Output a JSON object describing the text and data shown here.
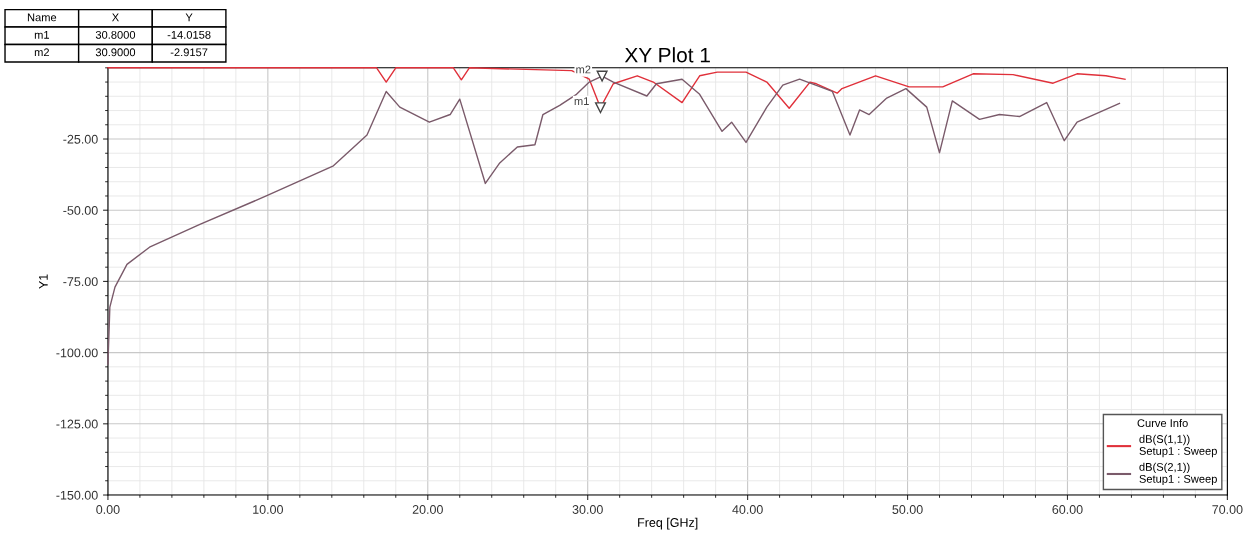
{
  "chart_data": {
    "type": "line",
    "title": "XY Plot 1",
    "xlabel": "Freq [GHz]",
    "ylabel": "Y1",
    "legend_title": "Curve Info",
    "xlim": [
      0,
      70
    ],
    "ylim": [
      -150,
      0
    ],
    "xticks": [
      {
        "value": 0,
        "label": "0.00"
      },
      {
        "value": 10,
        "label": "10.00"
      },
      {
        "value": 20,
        "label": "20.00"
      },
      {
        "value": 30,
        "label": "30.00"
      },
      {
        "value": 40,
        "label": "40.00"
      },
      {
        "value": 50,
        "label": "50.00"
      },
      {
        "value": 60,
        "label": "60.00"
      },
      {
        "value": 70,
        "label": "70.00"
      }
    ],
    "yticks": [
      {
        "value": -150,
        "label": "-150.00"
      },
      {
        "value": -125,
        "label": "-125.00"
      },
      {
        "value": -100,
        "label": "-100.00"
      },
      {
        "value": -75,
        "label": "-75.00"
      },
      {
        "value": -50,
        "label": "-50.00"
      },
      {
        "value": -25,
        "label": "-25.00"
      }
    ],
    "grid": true,
    "legend": "bottom right",
    "marker": "none",
    "line_style": "solid",
    "series": [
      {
        "name": "dB(S(1,1))\nSetup1 : Sweep",
        "color": "#e0303a",
        "x": [
          0,
          16.8,
          17.4,
          18,
          21.6,
          22.1,
          22.6,
          29.0,
          30.1,
          30.8,
          31.6,
          33.1,
          34.1,
          35.9,
          37,
          38.1,
          39.9,
          41.2,
          42.6,
          43.9,
          44.3,
          45.6,
          45.9,
          48,
          50.1,
          52.2,
          54.1,
          56.6,
          59.1,
          60.6,
          62.4,
          63.6
        ],
        "values": [
          0,
          0,
          -5,
          0,
          0,
          -4.2,
          0,
          -1,
          -4,
          -14.0,
          -5.6,
          -2.8,
          -5,
          -12.2,
          -2.8,
          -1.5,
          -1.5,
          -5,
          -14.2,
          -5,
          -5.6,
          -8.9,
          -7.3,
          -2.8,
          -6.7,
          -6.7,
          -2.1,
          -2.4,
          -5.4,
          -2.1,
          -2.8,
          -4
        ]
      },
      {
        "name": "dB(S(2,1))\nSetup1 : Sweep",
        "color": "#7a5a6a",
        "x": [
          0,
          0.12,
          0.44,
          1.19,
          2.6,
          5.75,
          9.9,
          14.1,
          16.2,
          17.4,
          18.25,
          20.1,
          21.4,
          22,
          23.6,
          24.5,
          25.6,
          26.7,
          27.2,
          28.25,
          29.3,
          30.1,
          30.9,
          31.6,
          33.7,
          34.3,
          35.9,
          37,
          38.4,
          39,
          39.9,
          41.2,
          42.2,
          43.25,
          45.3,
          46.4,
          47,
          47.6,
          48.7,
          49.9,
          51.2,
          52,
          52.8,
          54.5,
          55.75,
          57,
          58.7,
          59.8,
          60.6,
          63.25
        ],
        "values": [
          -104,
          -84,
          -77,
          -69,
          -63,
          -55,
          -45,
          -34.4,
          -23.6,
          -8.3,
          -13.8,
          -19.1,
          -16.4,
          -11,
          -40.6,
          -33.4,
          -27.8,
          -27,
          -16.4,
          -13.2,
          -9.3,
          -5,
          -2.9,
          -5,
          -9.9,
          -5.6,
          -4,
          -9.3,
          -22.3,
          -19.1,
          -26.2,
          -13.8,
          -6.1,
          -4,
          -8.3,
          -23.6,
          -14.8,
          -16.4,
          -10.6,
          -7.3,
          -13.8,
          -29.8,
          -11.6,
          -18.1,
          -16.4,
          -17.1,
          -12.2,
          -25.6,
          -19.1,
          -12.5
        ]
      }
    ],
    "annotations": [
      {
        "text": "m1",
        "x": 30.8,
        "y": -14.0
      },
      {
        "text": "m2",
        "x": 30.9,
        "y": -2.9
      },
      "Name",
      "X",
      "Y",
      "m1",
      "30.8000",
      "-14.0158",
      "m2",
      "30.9000",
      "-2.9157"
    ]
  }
}
